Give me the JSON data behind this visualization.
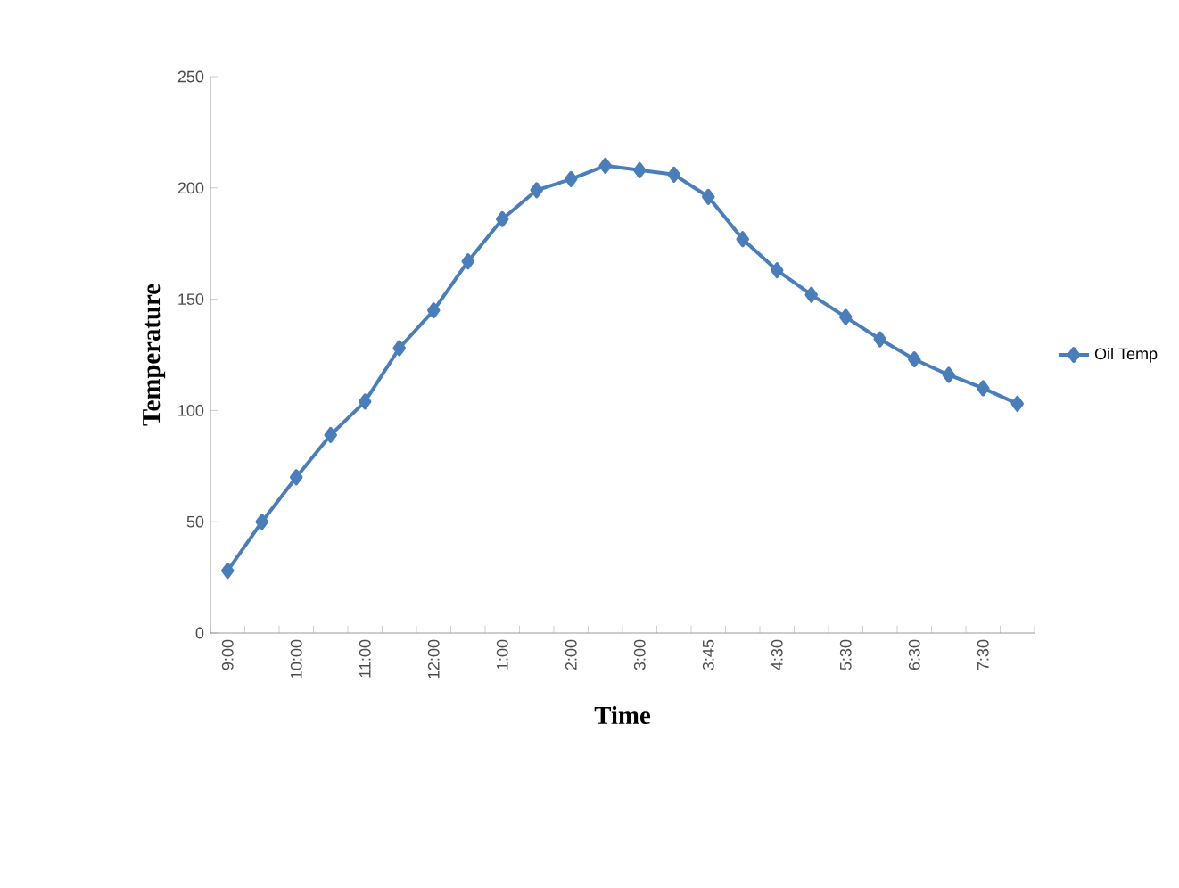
{
  "chart_data": {
    "type": "line",
    "xlabel": "Time",
    "ylabel": "Temperature",
    "categories": [
      "9:00",
      null,
      "10:00",
      null,
      "11:00",
      null,
      "12:00",
      null,
      "1:00",
      null,
      "2:00",
      null,
      "3:00",
      null,
      "3:45",
      null,
      "4:30",
      null,
      "5:30",
      null,
      "6:30",
      null,
      "7:30",
      null
    ],
    "series": [
      {
        "name": "Oil Temp",
        "color": "#4a7ebb",
        "values": [
          28,
          50,
          70,
          89,
          104,
          128,
          145,
          167,
          186,
          199,
          204,
          210,
          208,
          206,
          196,
          177,
          163,
          152,
          142,
          132,
          123,
          116,
          110,
          103
        ]
      }
    ],
    "ylim": [
      0,
      250
    ],
    "yticks": [
      0,
      50,
      100,
      150,
      200,
      250
    ],
    "marker": "diamond",
    "legend": "right",
    "grid": false
  }
}
